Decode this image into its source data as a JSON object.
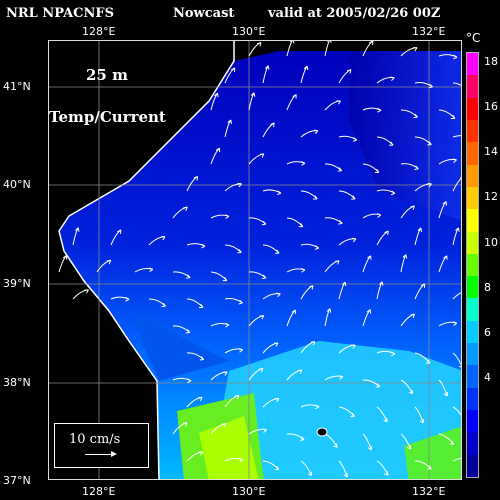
{
  "header": {
    "model": "NRL NPACNFS",
    "type": "Nowcast",
    "valid": "valid at 2005/02/26 00Z"
  },
  "map": {
    "depth_label": "25 m",
    "field_label": "Temp/Current",
    "lon_labels": [
      "128°E",
      "130°E",
      "132°E"
    ],
    "lat_labels": [
      "41°N",
      "40°N",
      "39°N",
      "38°N",
      "37°N"
    ],
    "scale_label": "10 cm/s"
  },
  "colorbar": {
    "unit": "°C",
    "ticks": [
      "18",
      "16",
      "14",
      "12",
      "10",
      "8",
      "6",
      "4"
    ],
    "colors": [
      "#ff00ff",
      "#ff0066",
      "#ff0000",
      "#ff3300",
      "#ff6600",
      "#ff9900",
      "#ffcc00",
      "#ffff00",
      "#ccff00",
      "#66ff00",
      "#00ff00",
      "#00ffcc",
      "#00ccff",
      "#0099ff",
      "#0066ff",
      "#0033ff",
      "#0000ff",
      "#0000cc",
      "#000099"
    ]
  }
}
